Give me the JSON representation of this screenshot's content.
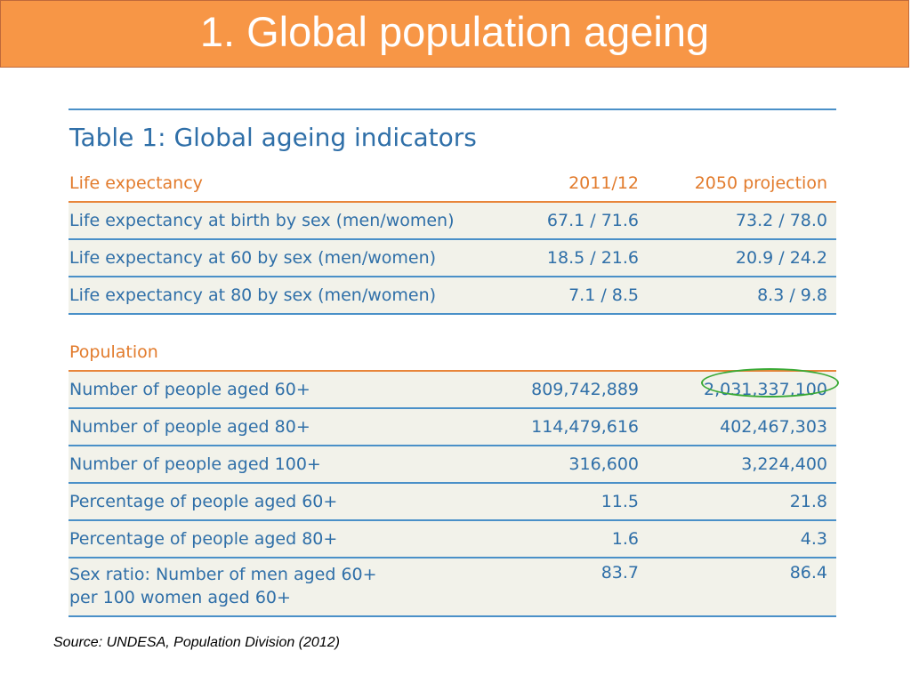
{
  "slide": {
    "title": "1. Global population ageing",
    "accent_color": "#f79646"
  },
  "table": {
    "caption": "Table 1: Global ageing indicators",
    "life_expectancy": {
      "header": {
        "label": "Life expectancy",
        "col1": "2011/12",
        "col2": "2050 projection"
      },
      "rows": [
        {
          "label": "Life expectancy at birth by sex (men/women)",
          "v2011": "67.1 / 71.6",
          "v2050": "73.2 / 78.0"
        },
        {
          "label": "Life expectancy at 60 by sex (men/women)",
          "v2011": "18.5 / 21.6",
          "v2050": "20.9 / 24.2"
        },
        {
          "label": "Life expectancy at 80 by sex (men/women)",
          "v2011": "7.1 / 8.5",
          "v2050": "8.3 / 9.8"
        }
      ]
    },
    "population": {
      "header": {
        "label": "Population"
      },
      "rows": [
        {
          "label": "Number of people aged 60+",
          "v2011": "809,742,889",
          "v2050": "2,031,337,100"
        },
        {
          "label": "Number of people aged 80+",
          "v2011": "114,479,616",
          "v2050": "402,467,303"
        },
        {
          "label": "Number of people aged 100+",
          "v2011": "316,600",
          "v2050": "3,224,400"
        },
        {
          "label": "Percentage of people aged 60+",
          "v2011": "11.5",
          "v2050": "21.8"
        },
        {
          "label": "Percentage of people aged 80+",
          "v2011": "1.6",
          "v2050": "4.3"
        },
        {
          "label_line1": "Sex ratio: Number of men aged 60+",
          "label_line2": "per 100 women aged 60+",
          "v2011": "83.7",
          "v2050": "86.4"
        }
      ]
    }
  },
  "source": "Source: UNDESA, Population Division (2012)"
}
